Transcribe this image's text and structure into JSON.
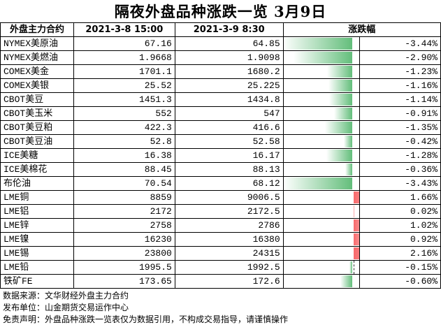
{
  "title": "隔夜外盘品种涨跌一览 3月9日",
  "headers": {
    "name": "外盘主力合约",
    "prev": "2021-3-8 15:00",
    "curr": "2021-3-9 8:30",
    "change": "涨跌幅"
  },
  "rows": [
    {
      "name": "NYMEX美原油",
      "prev": "67.16",
      "curr": "64.85",
      "pct": "-3.44%",
      "value": -3.44
    },
    {
      "name": "NYMEX美燃油",
      "prev": "1.9668",
      "curr": "1.9098",
      "pct": "-2.90%",
      "value": -2.9
    },
    {
      "name": "COMEX美金",
      "prev": "1701.1",
      "curr": "1680.2",
      "pct": "-1.23%",
      "value": -1.23
    },
    {
      "name": "COMEX美银",
      "prev": "25.52",
      "curr": "25.225",
      "pct": "-1.16%",
      "value": -1.16
    },
    {
      "name": "CBOT美豆",
      "prev": "1451.3",
      "curr": "1434.8",
      "pct": "-1.14%",
      "value": -1.14
    },
    {
      "name": "CBOT美玉米",
      "prev": "552",
      "curr": "547",
      "pct": "-0.91%",
      "value": -0.91
    },
    {
      "name": "CBOT美豆粕",
      "prev": "422.3",
      "curr": "416.6",
      "pct": "-1.35%",
      "value": -1.35
    },
    {
      "name": "CBOT美豆油",
      "prev": "52.8",
      "curr": "52.58",
      "pct": "-0.42%",
      "value": -0.42
    },
    {
      "name": "ICE美糖",
      "prev": "16.38",
      "curr": "16.17",
      "pct": "-1.28%",
      "value": -1.28
    },
    {
      "name": "ICE美棉花",
      "prev": "88.45",
      "curr": "88.13",
      "pct": "-0.36%",
      "value": -0.36
    },
    {
      "name": "布伦油",
      "prev": "70.54",
      "curr": "68.12",
      "pct": "-3.43%",
      "value": -3.43
    },
    {
      "name": "LME铜",
      "prev": "8859",
      "curr": "9006.5",
      "pct": "1.66%",
      "value": 1.66
    },
    {
      "name": "LME铝",
      "prev": "2172",
      "curr": "2172.5",
      "pct": "0.02%",
      "value": 0.02
    },
    {
      "name": "LME锌",
      "prev": "2758",
      "curr": "2786",
      "pct": "1.02%",
      "value": 1.02
    },
    {
      "name": "LME镍",
      "prev": "16230",
      "curr": "16380",
      "pct": "0.92%",
      "value": 0.92
    },
    {
      "name": "LME锡",
      "prev": "23800",
      "curr": "24315",
      "pct": "2.16%",
      "value": 2.16
    },
    {
      "name": "LME铅",
      "prev": "1995.5",
      "curr": "1992.5",
      "pct": "-0.15%",
      "value": -0.15
    },
    {
      "name": "铁矿FE",
      "prev": "173.65",
      "curr": "172.6",
      "pct": "-0.60%",
      "value": -0.6
    }
  ],
  "footer": {
    "source": "数据来源：文华财经外盘主力合约",
    "publisher": "发布单位：山金期货交易运作中心",
    "disclaimer": "免责声明：外盘品种涨跌一览表仅为数据引用，不构成交易指导，请谨慎操作"
  },
  "colors": {
    "negative": "#63be7b",
    "positive": "#f8696b"
  },
  "scale_max_abs": 3.44
}
